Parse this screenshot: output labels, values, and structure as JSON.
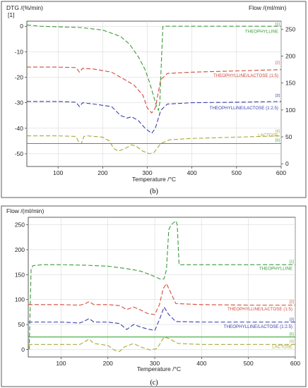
{
  "colors": {
    "green": "#3c9a3c",
    "red": "#d24a3a",
    "blue": "#3a3fb0",
    "olive": "#a8a83a",
    "solid_green": "#3aa63a",
    "axis": "#333333",
    "grid": "#d0d0d0"
  },
  "chart_data": [
    {
      "type": "line",
      "caption": "(b)",
      "xlabel": "Temperature /°C",
      "ylabel_left": "DTG /(%/min)",
      "ylabel_left_unit_line": "[1]",
      "ylabel_right": "Flow /(ml/min)",
      "xlim": [
        30,
        600
      ],
      "ylim": [
        -55,
        2
      ],
      "xticks": [
        100,
        200,
        300,
        400,
        500,
        600
      ],
      "yticks_left": [
        0,
        -10,
        -20,
        -30,
        -40,
        -50
      ],
      "yticks_right": [
        0,
        50,
        100,
        150,
        200,
        250
      ],
      "right_axis": {
        "ylim": [
          -5,
          265
        ],
        "tick_labels": [
          "0",
          "50",
          "100",
          "150",
          "200",
          "250"
        ]
      },
      "grid": true,
      "series": [
        {
          "name": "THEOPHYLLINE",
          "index_label": "[1]",
          "color": "#3c9a3c",
          "dash": true,
          "x": [
            30,
            60,
            100,
            150,
            200,
            240,
            260,
            280,
            295,
            305,
            315,
            320,
            325,
            328,
            332,
            335,
            400,
            500,
            600
          ],
          "y": [
            0.5,
            0,
            -0.2,
            -0.5,
            -1.5,
            -4,
            -7,
            -12,
            -17,
            -22,
            -28,
            -31,
            -33,
            -30,
            -12,
            0,
            0,
            0,
            0
          ]
        },
        {
          "name": "THEOPHYLLINE/LACTOSE (1:5)",
          "index_label": "[2]",
          "color": "#d24a3a",
          "dash": true,
          "x": [
            30,
            100,
            140,
            148,
            155,
            180,
            220,
            250,
            270,
            290,
            300,
            310,
            318,
            330,
            345,
            400,
            500,
            600
          ],
          "y": [
            -16,
            -16,
            -16.2,
            -18,
            -16.5,
            -16.8,
            -18,
            -21,
            -23,
            -27,
            -32,
            -34,
            -32,
            -21,
            -18.5,
            -18,
            -17.5,
            -17
          ]
        },
        {
          "name": "THEOPHYLLINE/LACTOSE (1:2.5)",
          "index_label": "[3]",
          "color": "#3a3fb0",
          "dash": true,
          "x": [
            30,
            100,
            140,
            148,
            155,
            180,
            220,
            240,
            255,
            265,
            280,
            295,
            310,
            318,
            330,
            345,
            400,
            500,
            600
          ],
          "y": [
            -29.5,
            -29.5,
            -29.8,
            -31.5,
            -30,
            -30.5,
            -31.5,
            -35,
            -36,
            -35.5,
            -37,
            -40,
            -42,
            -40,
            -33,
            -30.5,
            -30,
            -29.8,
            -29.5
          ]
        },
        {
          "name": "LACTOSE",
          "index_label": "[4]",
          "color": "#a8a83a",
          "dash": true,
          "x": [
            30,
            100,
            140,
            148,
            152,
            158,
            165,
            200,
            215,
            225,
            235,
            250,
            265,
            275,
            290,
            305,
            315,
            330,
            350,
            400,
            500,
            600
          ],
          "y": [
            -43,
            -43,
            -43.2,
            -46,
            -46,
            -43.2,
            -43,
            -43.5,
            -45,
            -48,
            -49,
            -48,
            -46.5,
            -47,
            -49,
            -50,
            -49.5,
            -46,
            -44.5,
            -44,
            -43.5,
            -43
          ]
        },
        {
          "name": "",
          "index_label": "[5]",
          "color": "#3aa63a",
          "dash": false,
          "x": [
            30,
            600
          ],
          "y": [
            -46,
            -46
          ]
        }
      ]
    },
    {
      "type": "line",
      "caption": "(c)",
      "xlabel": "Temperature /°C",
      "ylabel_left": "Flow /(ml/min)",
      "xlim": [
        30,
        600
      ],
      "ylim": [
        -15,
        265
      ],
      "xticks": [
        100,
        200,
        300,
        400,
        500,
        600
      ],
      "yticks_left": [
        0,
        50,
        100,
        150,
        200,
        250
      ],
      "grid": true,
      "series": [
        {
          "name": "THEOPHYLLINE",
          "index_label": "[1]",
          "color": "#3c9a3c",
          "dash": true,
          "x": [
            32,
            36,
            40,
            60,
            100,
            150,
            200,
            240,
            270,
            290,
            305,
            315,
            320,
            325,
            330,
            335,
            345,
            348,
            352,
            400,
            500,
            600
          ],
          "y": [
            0,
            160,
            168,
            170,
            170,
            169,
            167,
            162,
            157,
            150,
            144,
            140,
            142,
            160,
            240,
            250,
            258,
            250,
            170,
            170,
            170,
            170
          ]
        },
        {
          "name": "THEOPHYLLINE/LACTOSE (1:5)",
          "index_label": "[2]",
          "color": "#d24a3a",
          "dash": true,
          "x": [
            30,
            100,
            140,
            150,
            160,
            170,
            200,
            225,
            240,
            255,
            270,
            285,
            300,
            310,
            318,
            325,
            332,
            345,
            400,
            500,
            600
          ],
          "y": [
            90,
            90,
            89,
            91,
            96,
            90,
            90,
            88,
            80,
            85,
            79,
            72,
            70,
            90,
            122,
            132,
            118,
            92,
            90,
            89,
            89
          ]
        },
        {
          "name": "THEOPHYLLINE/LACTOSE (1:2.5)",
          "index_label": "[3]",
          "color": "#3a3fb0",
          "dash": true,
          "x": [
            30,
            100,
            140,
            150,
            160,
            170,
            200,
            225,
            240,
            255,
            270,
            285,
            300,
            310,
            320,
            330,
            345,
            400,
            500,
            600
          ],
          "y": [
            55,
            55,
            53,
            57,
            62,
            55,
            55,
            52,
            40,
            50,
            45,
            41,
            38,
            60,
            85,
            70,
            56,
            55,
            55,
            55
          ]
        },
        {
          "name": "LACTOSE",
          "index_label": "[4]",
          "color": "#a8a83a",
          "dash": true,
          "x": [
            30,
            100,
            140,
            150,
            160,
            170,
            200,
            215,
            225,
            235,
            255,
            270,
            290,
            305,
            320,
            330,
            350,
            400,
            500,
            600
          ],
          "y": [
            10,
            10,
            10,
            15,
            21,
            12,
            8,
            -2,
            -4,
            5,
            12,
            5,
            -1,
            2,
            25,
            22,
            12,
            10,
            10,
            10
          ]
        },
        {
          "name": "",
          "index_label": "[5]",
          "color": "#3aa63a",
          "dash": false,
          "x": [
            30,
            600
          ],
          "y": [
            25,
            25
          ]
        }
      ]
    }
  ]
}
